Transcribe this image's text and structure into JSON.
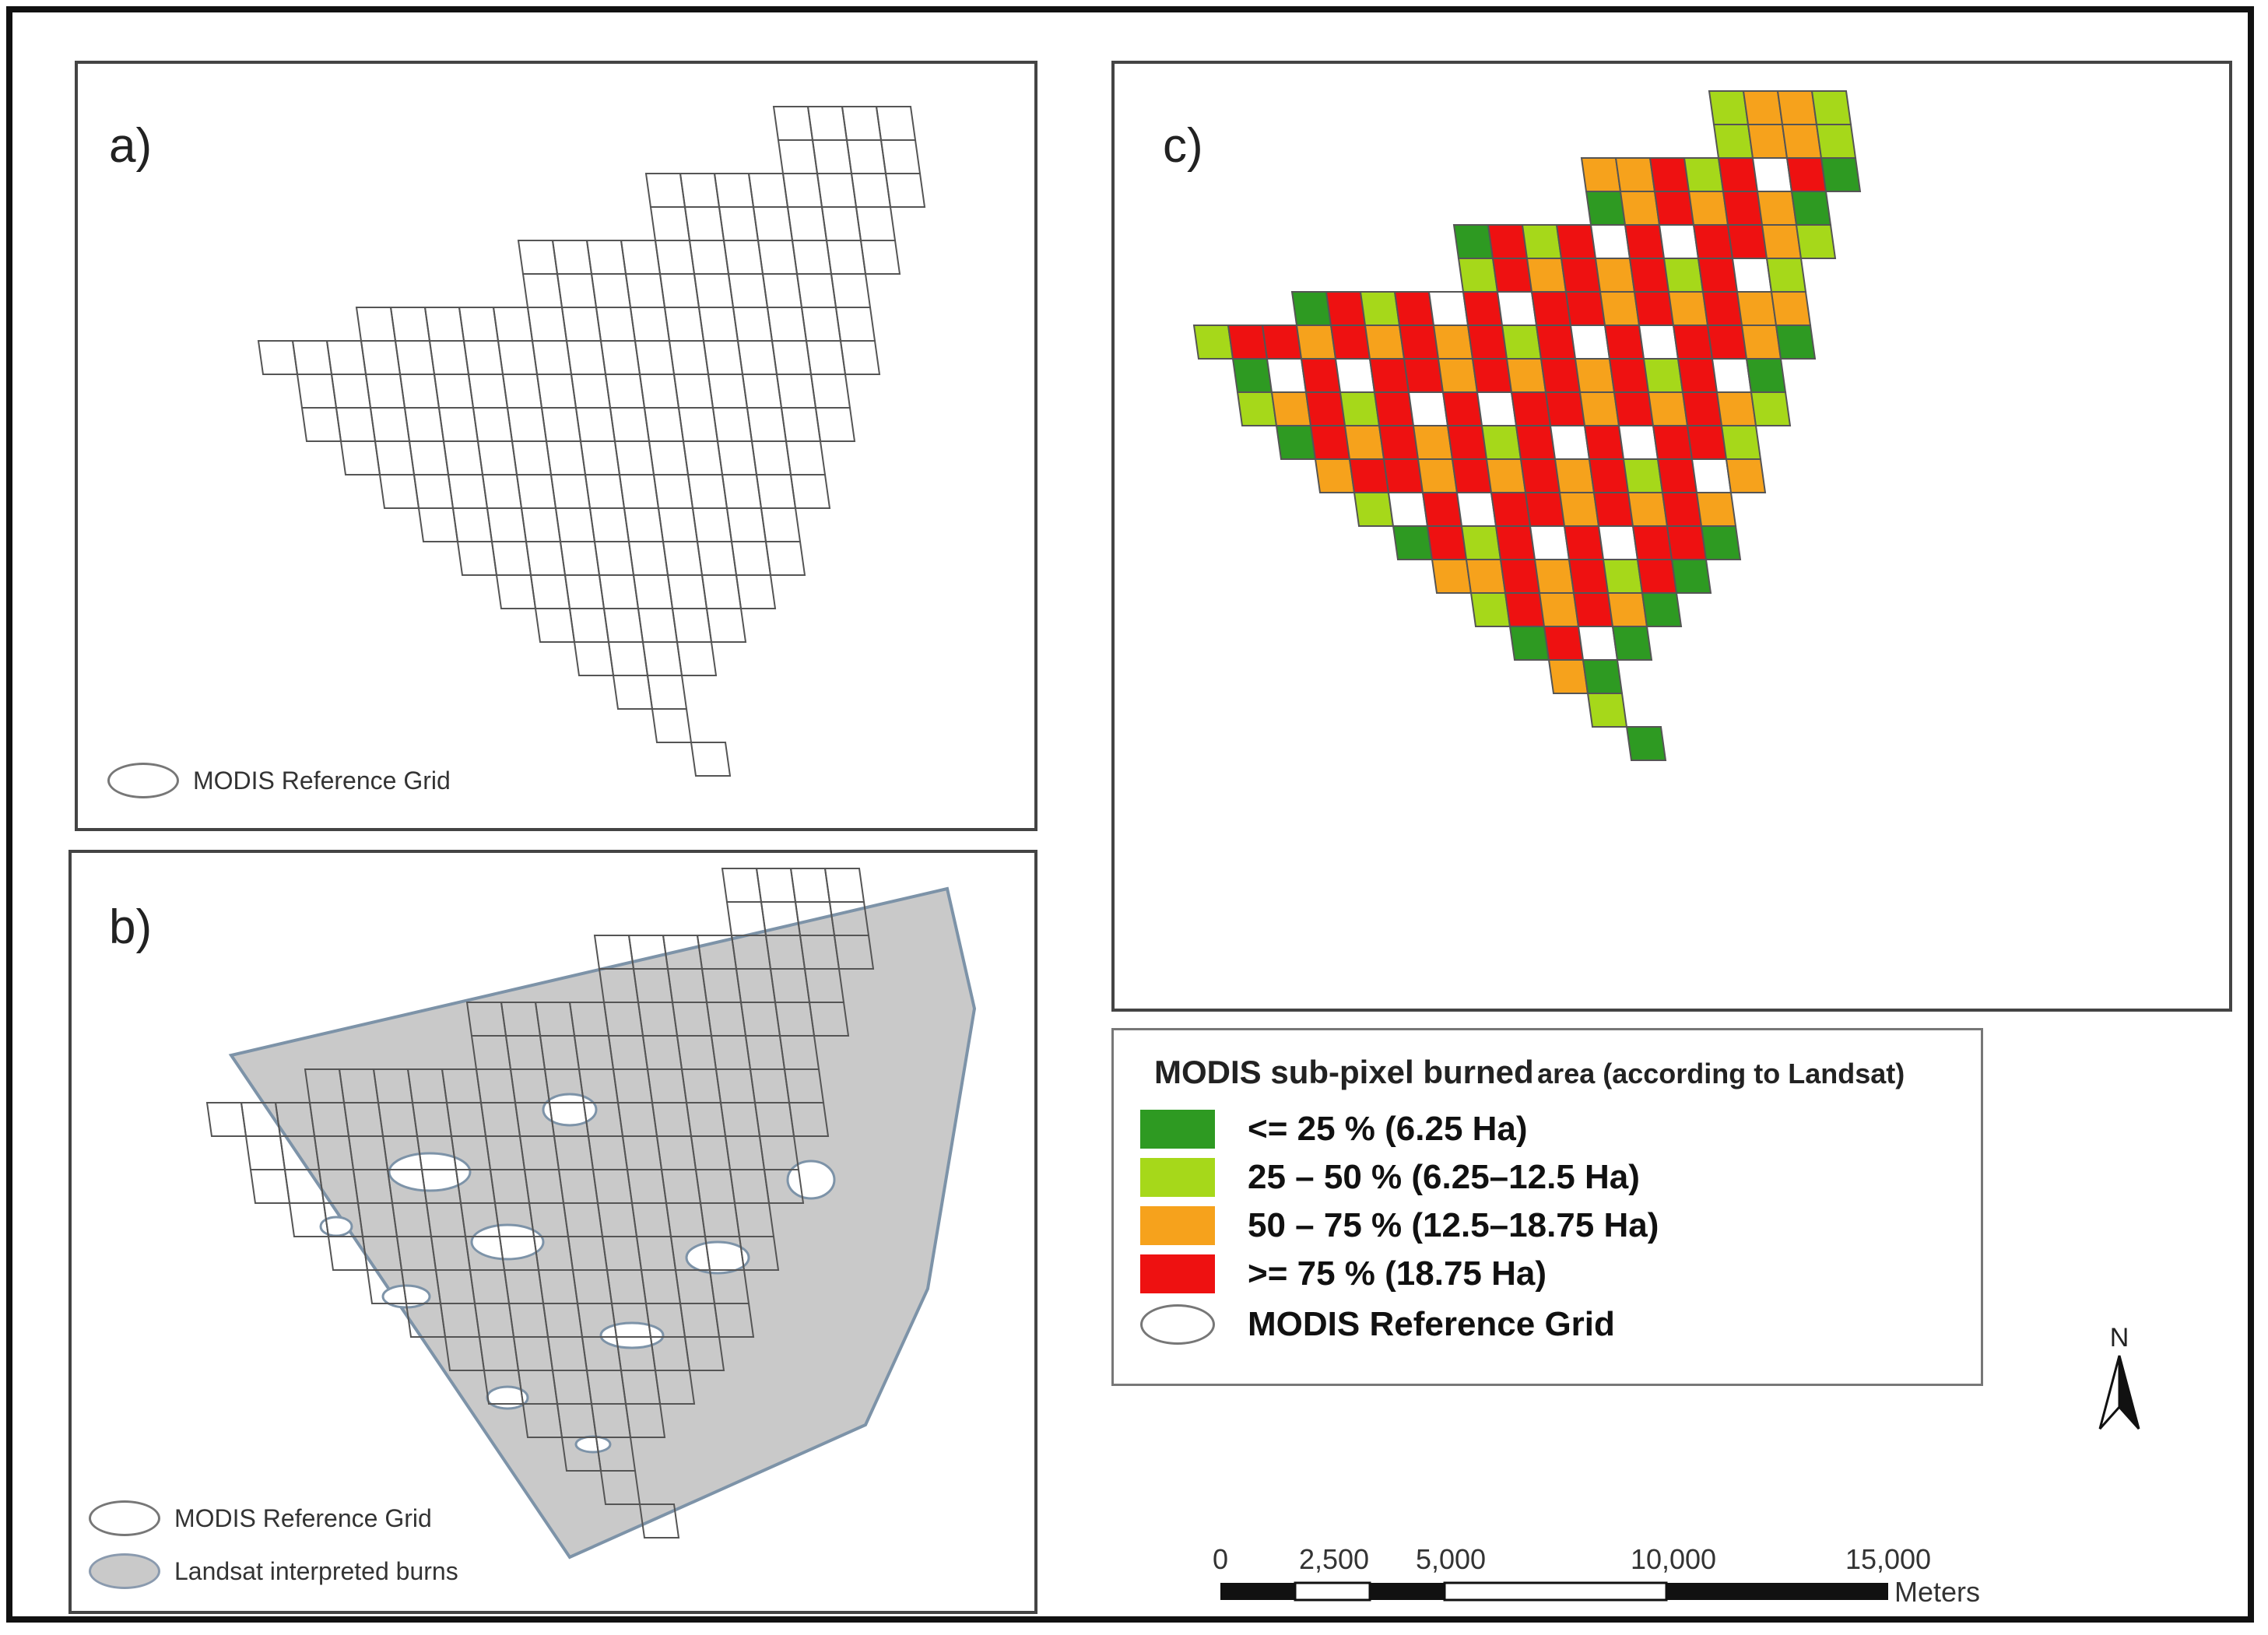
{
  "panels": {
    "a": {
      "label": "a)",
      "legend": "MODIS Reference Grid"
    },
    "b": {
      "label": "b)",
      "legend_grid": "MODIS Reference Grid",
      "legend_burns": "Landsat interpreted burns"
    },
    "c": {
      "label": "c)"
    }
  },
  "legend_c": {
    "title_main": "MODIS sub-pixel burned",
    "title_tail": "area (according to Landsat)",
    "classes": [
      {
        "label": "<= 25 % (6.25 Ha)",
        "color": "#2e9a22"
      },
      {
        "label": "25 – 50 % (6.25–12.5 Ha)",
        "color": "#a6d81a"
      },
      {
        "label": "50 – 75 % (12.5–18.75 Ha)",
        "color": "#f6a21c"
      },
      {
        "label": ">= 75 % (18.75 Ha)",
        "color": "#ee1111"
      }
    ],
    "grid_label": "MODIS Reference Grid"
  },
  "north_arrow": {
    "label": "N"
  },
  "scale_bar": {
    "ticks": [
      "0",
      "2,500",
      "5,000",
      "10,000",
      "15,000"
    ],
    "unit": "Meters"
  },
  "colors": {
    "grid_line": "#555555",
    "burn_fill": "#c9c9c9",
    "burn_outline": "#7d93a8"
  }
}
